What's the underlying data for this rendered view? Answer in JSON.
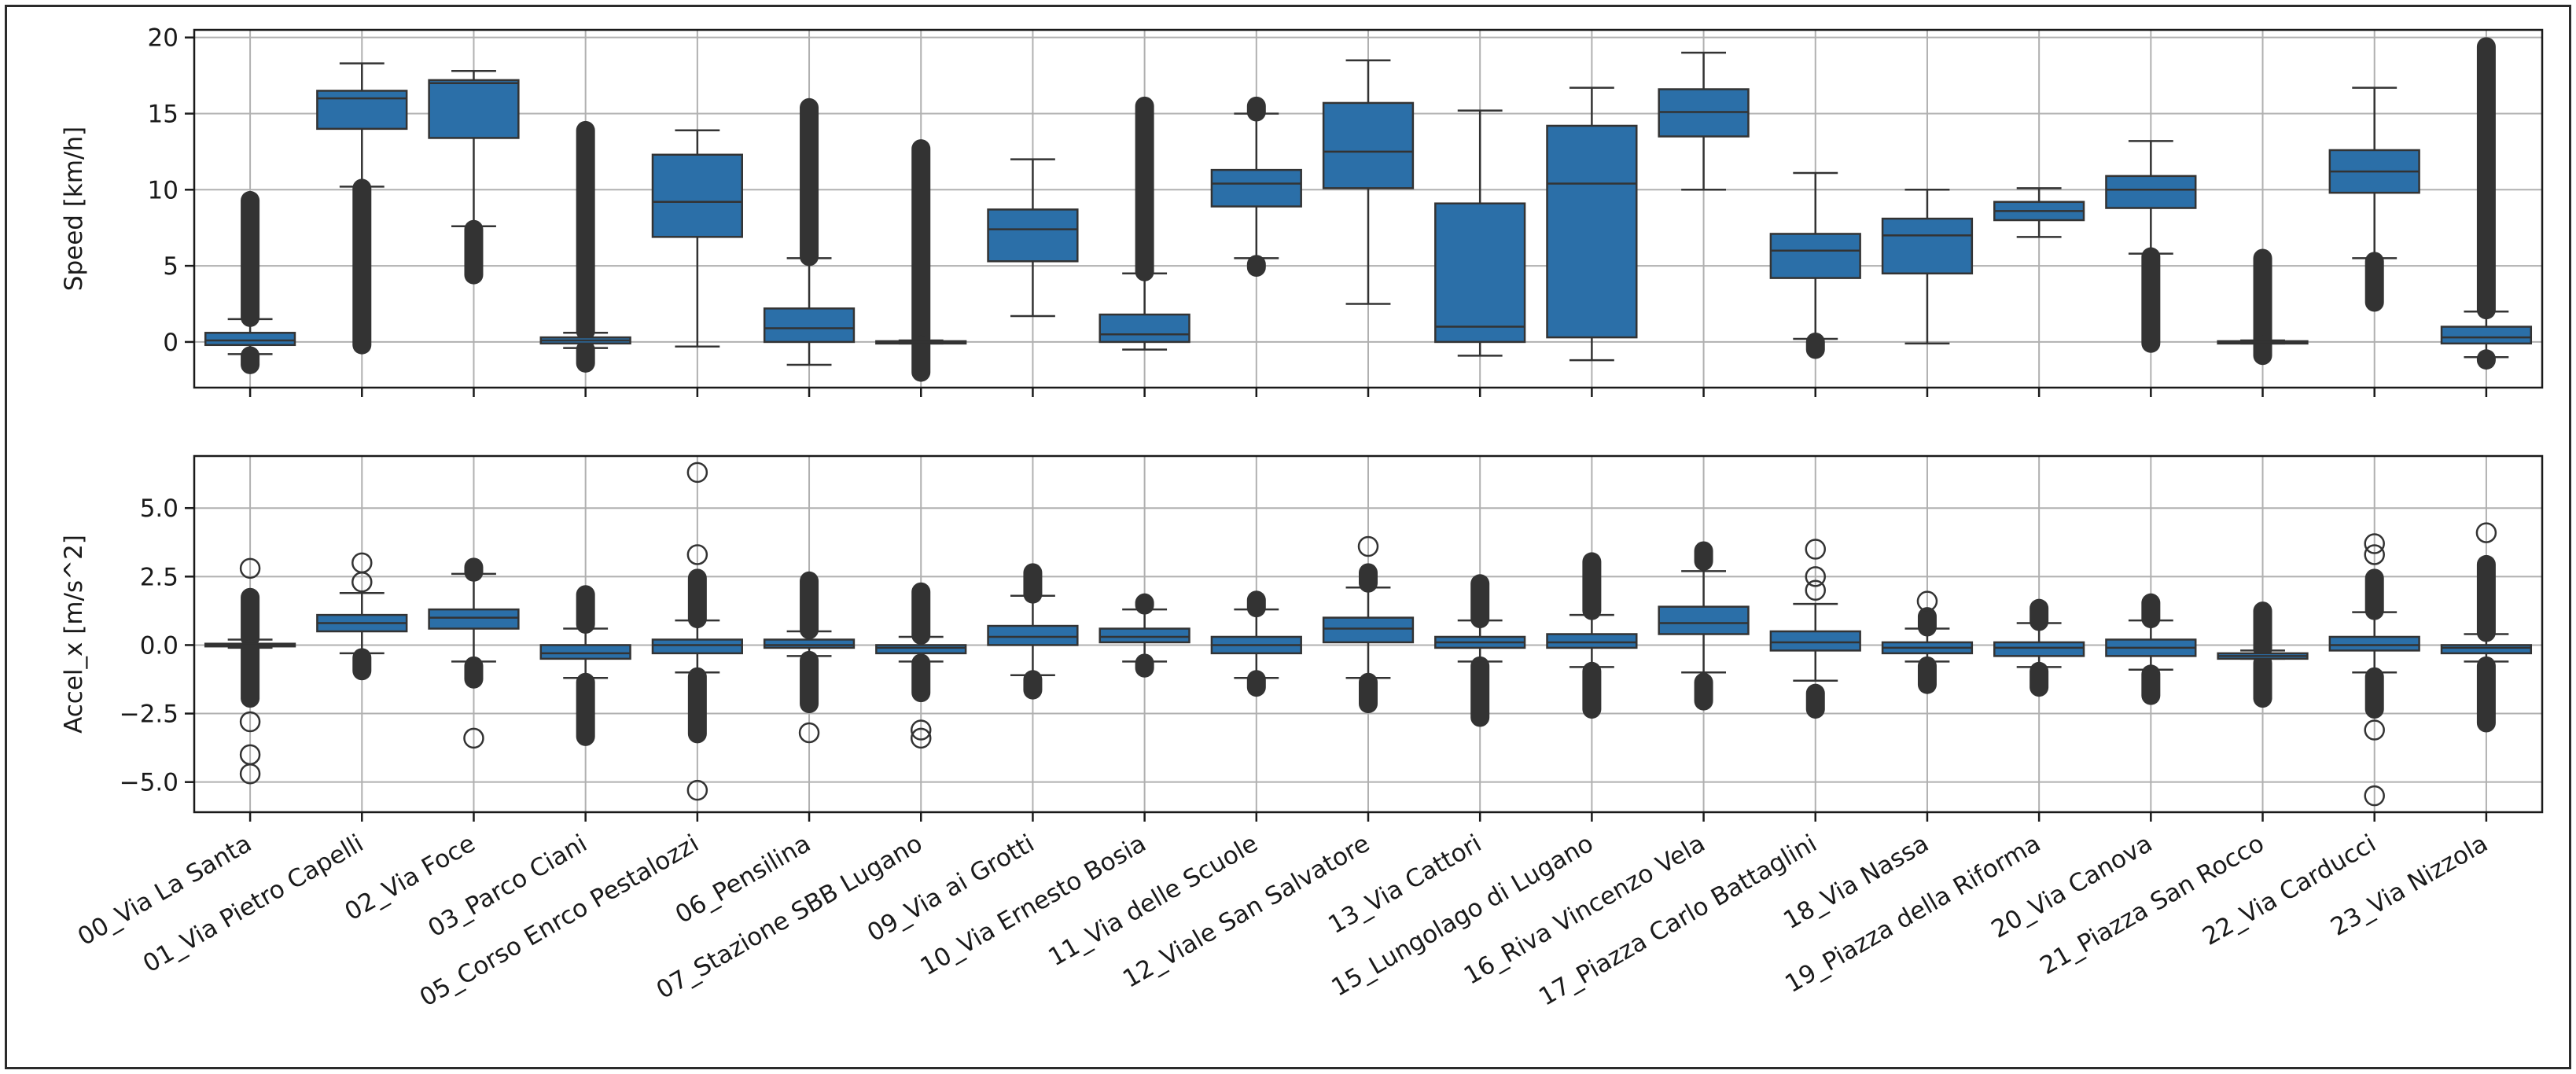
{
  "chart_data": {
    "type": "box",
    "categories": [
      "00_Via La Santa",
      "01_Via Pietro Capelli",
      "02_Via Foce",
      "03_Parco Ciani",
      "05_Corso Enrco Pestalozzi",
      "06_Pensilina",
      "07_Stazione SBB Lugano",
      "09_Via ai Grotti",
      "10_Via Ernesto Bosia",
      "11_Via delle Scuole",
      "12_Viale San Salvatore",
      "13_Via Cattori",
      "15_Lungolago di Lugano",
      "16_Riva Vincenzo Vela",
      "17_Piazza Carlo Battaglini",
      "18_Via Nassa",
      "19_Piazza della Riforma",
      "20_Via Canova",
      "21_Piazza San Rocco",
      "22_Via Carducci",
      "23_Via Nizzola"
    ],
    "box_color": "#2b6fa8",
    "line_color": "#333333",
    "panels": [
      {
        "ylabel": "Speed [km/h]",
        "ylim": [
          -3,
          20.5
        ],
        "yticks": [
          0,
          5,
          10,
          15,
          20
        ],
        "tick_labels": [
          "0",
          "5",
          "10",
          "15",
          "20"
        ],
        "grid": true,
        "boxes": [
          {
            "q1": -0.2,
            "median": 0.1,
            "q3": 0.6,
            "whisker_low": -0.8,
            "whisker_high": 1.5,
            "outlier_ranges": [
              [
                1.5,
                9.4
              ],
              [
                -1.6,
                -0.8
              ]
            ]
          },
          {
            "q1": 14.0,
            "median": 16.0,
            "q3": 16.5,
            "whisker_low": 10.2,
            "whisker_high": 18.3,
            "outlier_ranges": [
              [
                -0.3,
                10.2
              ]
            ]
          },
          {
            "q1": 13.4,
            "median": 17.0,
            "q3": 17.2,
            "whisker_low": 7.6,
            "whisker_high": 17.8,
            "outlier_ranges": [
              [
                4.3,
                7.5
              ]
            ]
          },
          {
            "q1": -0.1,
            "median": 0.1,
            "q3": 0.3,
            "whisker_low": -0.4,
            "whisker_high": 0.6,
            "outlier_ranges": [
              [
                0.6,
                14.0
              ],
              [
                -1.5,
                -0.4
              ]
            ]
          },
          {
            "q1": 6.9,
            "median": 9.2,
            "q3": 12.3,
            "whisker_low": -0.3,
            "whisker_high": 13.9,
            "outlier_ranges": []
          },
          {
            "q1": 0.0,
            "median": 0.9,
            "q3": 2.2,
            "whisker_low": -1.5,
            "whisker_high": 5.5,
            "outlier_ranges": [
              [
                5.5,
                15.5
              ]
            ]
          },
          {
            "q1": -0.05,
            "median": 0.0,
            "q3": 0.05,
            "whisker_low": -0.1,
            "whisker_high": 0.1,
            "outlier_ranges": [
              [
                0.1,
                12.8
              ],
              [
                -2.1,
                -0.1
              ]
            ]
          },
          {
            "q1": 5.3,
            "median": 7.4,
            "q3": 8.7,
            "whisker_low": 1.7,
            "whisker_high": 12.0,
            "outlier_ranges": []
          },
          {
            "q1": 0.0,
            "median": 0.5,
            "q3": 1.8,
            "whisker_low": -0.5,
            "whisker_high": 4.5,
            "outlier_ranges": [
              [
                4.5,
                15.6
              ]
            ]
          },
          {
            "q1": 8.9,
            "median": 10.4,
            "q3": 11.3,
            "whisker_low": 5.5,
            "whisker_high": 15.0,
            "outlier_ranges": [
              [
                15.0,
                15.6
              ],
              [
                4.8,
                5.2
              ]
            ]
          },
          {
            "q1": 10.1,
            "median": 12.5,
            "q3": 15.7,
            "whisker_low": 2.5,
            "whisker_high": 18.5,
            "outlier_ranges": []
          },
          {
            "q1": 0.0,
            "median": 1.0,
            "q3": 9.1,
            "whisker_low": -0.9,
            "whisker_high": 15.2,
            "outlier_ranges": []
          },
          {
            "q1": 0.3,
            "median": 10.4,
            "q3": 14.2,
            "whisker_low": -1.2,
            "whisker_high": 16.7,
            "outlier_ranges": []
          },
          {
            "q1": 13.5,
            "median": 15.1,
            "q3": 16.6,
            "whisker_low": 10.0,
            "whisker_high": 19.0,
            "outlier_ranges": []
          },
          {
            "q1": 4.2,
            "median": 6.0,
            "q3": 7.1,
            "whisker_low": 0.2,
            "whisker_high": 11.1,
            "outlier_ranges": [
              [
                -0.6,
                0.1
              ]
            ]
          },
          {
            "q1": 4.5,
            "median": 7.0,
            "q3": 8.1,
            "whisker_low": -0.1,
            "whisker_high": 10.0,
            "outlier_ranges": []
          },
          {
            "q1": 8.0,
            "median": 8.6,
            "q3": 9.2,
            "whisker_low": 6.9,
            "whisker_high": 10.1,
            "outlier_ranges": []
          },
          {
            "q1": 8.8,
            "median": 10.0,
            "q3": 10.9,
            "whisker_low": 5.8,
            "whisker_high": 13.2,
            "outlier_ranges": [
              [
                -0.2,
                5.7
              ]
            ]
          },
          {
            "q1": -0.05,
            "median": 0.0,
            "q3": 0.05,
            "whisker_low": -0.1,
            "whisker_high": 0.1,
            "outlier_ranges": [
              [
                0.1,
                5.6
              ],
              [
                -1.0,
                -0.1
              ]
            ]
          },
          {
            "q1": 9.8,
            "median": 11.2,
            "q3": 12.6,
            "whisker_low": 5.5,
            "whisker_high": 16.7,
            "outlier_ranges": [
              [
                2.5,
                5.4
              ]
            ]
          },
          {
            "q1": -0.1,
            "median": 0.3,
            "q3": 1.0,
            "whisker_low": -1.0,
            "whisker_high": 2.0,
            "outlier_ranges": [
              [
                2.0,
                19.5
              ],
              [
                -1.3,
                -1.0
              ]
            ]
          }
        ]
      },
      {
        "ylabel": "Accel_x [m/s^2]",
        "ylim": [
          -6.1,
          6.9
        ],
        "yticks": [
          -5,
          -2.5,
          0,
          2.5,
          5
        ],
        "tick_labels": [
          "−5.0",
          "−2.5",
          "0.0",
          "2.5",
          "5.0"
        ],
        "grid": true,
        "boxes": [
          {
            "q1": -0.05,
            "median": 0.0,
            "q3": 0.05,
            "whisker_low": -0.1,
            "whisker_high": 0.2,
            "outlier_ranges": [
              [
                0.2,
                1.8
              ],
              [
                -2.0,
                -0.1
              ]
            ],
            "outliers": [
              2.8,
              -2.8,
              -4.0,
              -4.7
            ]
          },
          {
            "q1": 0.5,
            "median": 0.8,
            "q3": 1.1,
            "whisker_low": -0.3,
            "whisker_high": 1.9,
            "outlier_ranges": [
              [
                -1.0,
                -0.4
              ]
            ],
            "outliers": [
              2.3,
              3.0
            ]
          },
          {
            "q1": 0.6,
            "median": 1.0,
            "q3": 1.3,
            "whisker_low": -0.6,
            "whisker_high": 2.6,
            "outlier_ranges": [
              [
                2.6,
                2.9
              ],
              [
                -1.3,
                -0.7
              ]
            ],
            "outliers": [
              -3.4
            ]
          },
          {
            "q1": -0.5,
            "median": -0.3,
            "q3": 0.0,
            "whisker_low": -1.2,
            "whisker_high": 0.6,
            "outlier_ranges": [
              [
                0.7,
                1.9
              ],
              [
                -3.4,
                -1.3
              ]
            ],
            "outliers": []
          },
          {
            "q1": -0.3,
            "median": 0.0,
            "q3": 0.2,
            "whisker_low": -1.0,
            "whisker_high": 0.9,
            "outlier_ranges": [
              [
                0.9,
                2.5
              ],
              [
                -3.3,
                -1.1
              ]
            ],
            "outliers": [
              3.3,
              6.3,
              -5.3
            ]
          },
          {
            "q1": -0.1,
            "median": 0.0,
            "q3": 0.2,
            "whisker_low": -0.4,
            "whisker_high": 0.5,
            "outlier_ranges": [
              [
                0.5,
                2.4
              ],
              [
                -2.2,
                -0.5
              ]
            ],
            "outliers": [
              -3.2
            ]
          },
          {
            "q1": -0.3,
            "median": -0.1,
            "q3": 0.0,
            "whisker_low": -0.6,
            "whisker_high": 0.3,
            "outlier_ranges": [
              [
                0.3,
                2.0
              ],
              [
                -1.8,
                -0.6
              ]
            ],
            "outliers": [
              -3.1,
              -3.4
            ]
          },
          {
            "q1": 0.0,
            "median": 0.3,
            "q3": 0.7,
            "whisker_low": -1.1,
            "whisker_high": 1.8,
            "outlier_ranges": [
              [
                1.8,
                2.7
              ],
              [
                -1.7,
                -1.2
              ]
            ],
            "outliers": []
          },
          {
            "q1": 0.1,
            "median": 0.3,
            "q3": 0.6,
            "whisker_low": -0.6,
            "whisker_high": 1.3,
            "outlier_ranges": [
              [
                1.4,
                1.6
              ],
              [
                -0.9,
                -0.6
              ]
            ],
            "outliers": []
          },
          {
            "q1": -0.3,
            "median": 0.0,
            "q3": 0.3,
            "whisker_low": -1.2,
            "whisker_high": 1.3,
            "outlier_ranges": [
              [
                1.3,
                1.7
              ],
              [
                -1.6,
                -1.2
              ]
            ],
            "outliers": []
          },
          {
            "q1": 0.1,
            "median": 0.6,
            "q3": 1.0,
            "whisker_low": -1.2,
            "whisker_high": 2.1,
            "outlier_ranges": [
              [
                2.2,
                2.7
              ],
              [
                -2.2,
                -1.3
              ]
            ],
            "outliers": [
              3.6
            ]
          },
          {
            "q1": -0.1,
            "median": 0.1,
            "q3": 0.3,
            "whisker_low": -0.6,
            "whisker_high": 0.9,
            "outlier_ranges": [
              [
                0.9,
                2.3
              ],
              [
                -2.7,
                -0.7
              ]
            ],
            "outliers": []
          },
          {
            "q1": -0.1,
            "median": 0.1,
            "q3": 0.4,
            "whisker_low": -0.8,
            "whisker_high": 1.1,
            "outlier_ranges": [
              [
                1.2,
                3.1
              ],
              [
                -2.4,
                -0.9
              ]
            ],
            "outliers": []
          },
          {
            "q1": 0.4,
            "median": 0.8,
            "q3": 1.4,
            "whisker_low": -1.0,
            "whisker_high": 2.7,
            "outlier_ranges": [
              [
                3.0,
                3.5
              ],
              [
                -2.1,
                -1.3
              ]
            ],
            "outliers": []
          },
          {
            "q1": -0.2,
            "median": 0.1,
            "q3": 0.5,
            "whisker_low": -1.3,
            "whisker_high": 1.5,
            "outlier_ranges": [
              [
                -2.4,
                -1.7
              ]
            ],
            "outliers": [
              2.0,
              2.5,
              3.5
            ]
          },
          {
            "q1": -0.3,
            "median": -0.1,
            "q3": 0.1,
            "whisker_low": -0.6,
            "whisker_high": 0.6,
            "outlier_ranges": [
              [
                0.6,
                1.1
              ],
              [
                -1.5,
                -0.7
              ]
            ],
            "outliers": [
              1.6
            ]
          },
          {
            "q1": -0.4,
            "median": -0.1,
            "q3": 0.1,
            "whisker_low": -0.8,
            "whisker_high": 0.8,
            "outlier_ranges": [
              [
                0.8,
                1.4
              ],
              [
                -1.6,
                -0.9
              ]
            ],
            "outliers": []
          },
          {
            "q1": -0.4,
            "median": -0.1,
            "q3": 0.2,
            "whisker_low": -0.9,
            "whisker_high": 0.9,
            "outlier_ranges": [
              [
                0.9,
                1.6
              ],
              [
                -1.9,
                -1.0
              ]
            ],
            "outliers": []
          },
          {
            "q1": -0.5,
            "median": -0.4,
            "q3": -0.3,
            "whisker_low": -0.5,
            "whisker_high": -0.2,
            "outlier_ranges": [
              [
                -0.2,
                1.3
              ],
              [
                -2.0,
                -0.6
              ]
            ],
            "outliers": []
          },
          {
            "q1": -0.2,
            "median": 0.0,
            "q3": 0.3,
            "whisker_low": -1.0,
            "whisker_high": 1.2,
            "outlier_ranges": [
              [
                1.2,
                2.5
              ],
              [
                -2.4,
                -1.1
              ]
            ],
            "outliers": [
              3.7,
              3.3,
              -3.1,
              -5.5
            ]
          },
          {
            "q1": -0.3,
            "median": -0.1,
            "q3": 0.0,
            "whisker_low": -0.6,
            "whisker_high": 0.4,
            "outlier_ranges": [
              [
                0.4,
                3.0
              ],
              [
                -2.9,
                -0.7
              ]
            ],
            "outliers": [
              4.1
            ]
          }
        ]
      }
    ]
  }
}
